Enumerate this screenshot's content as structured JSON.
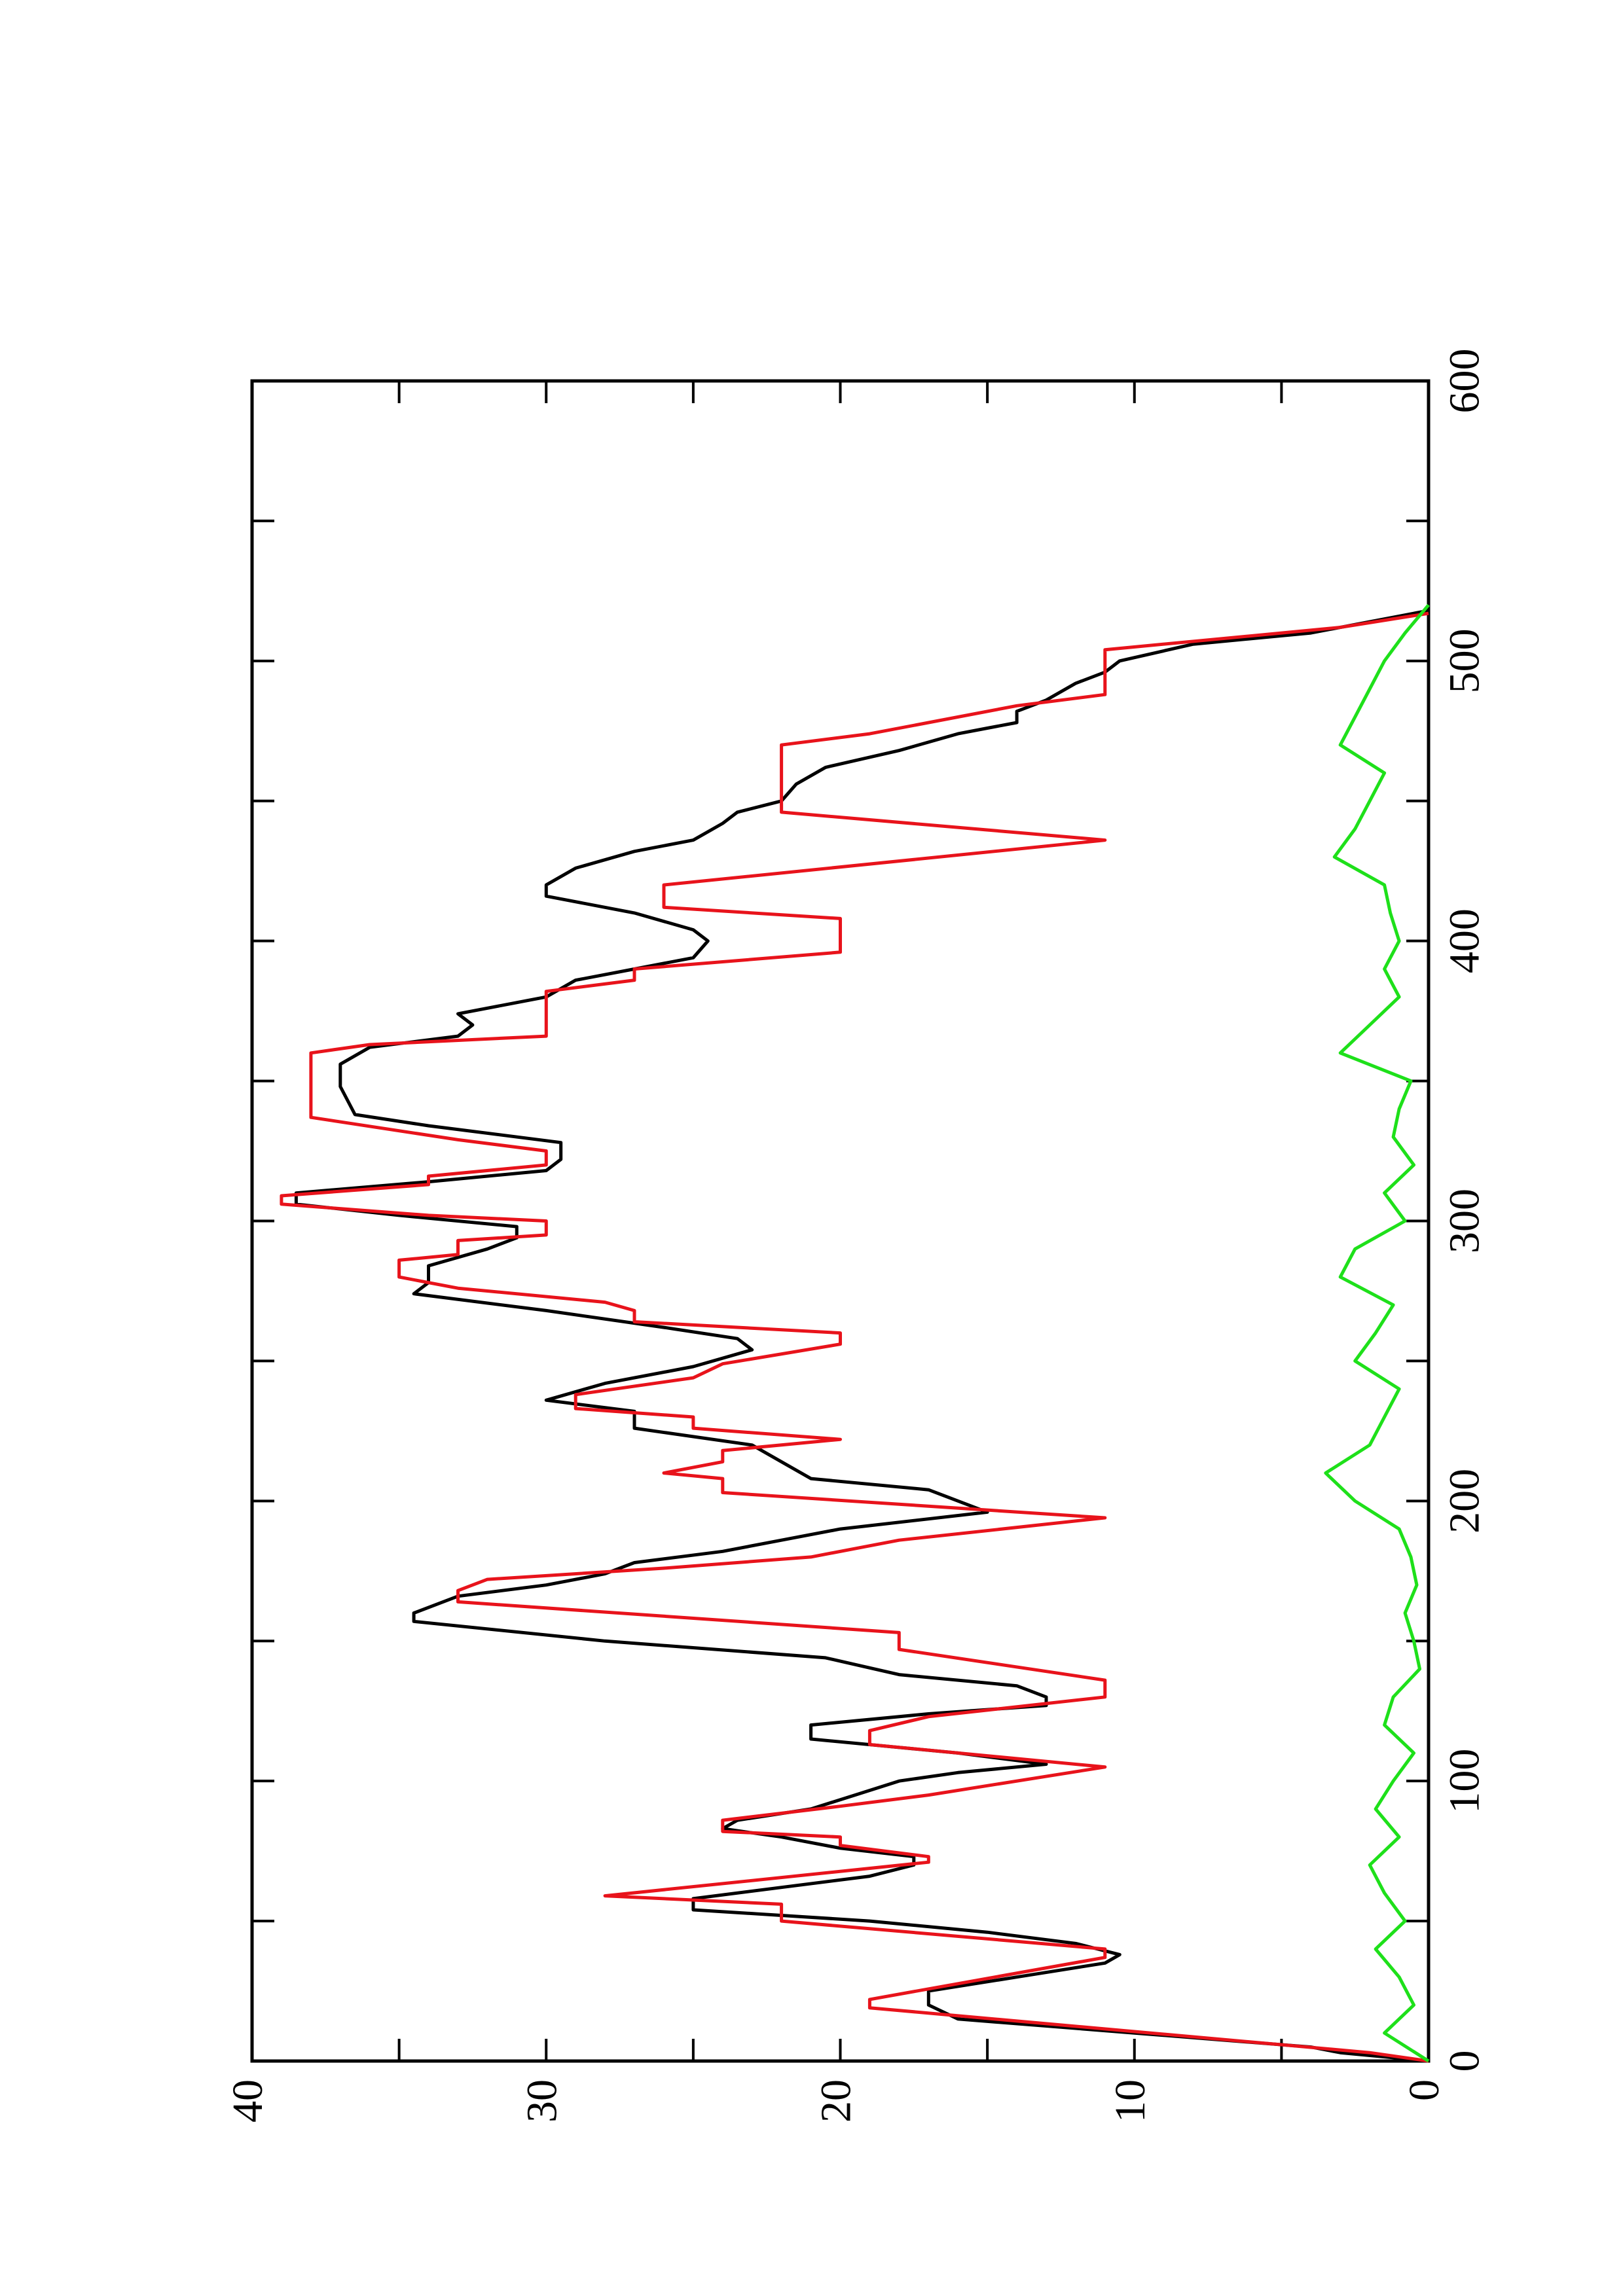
{
  "chart_data": {
    "type": "line",
    "rotated": true,
    "xlim": [
      0,
      600
    ],
    "xticks": [
      0,
      100,
      200,
      300,
      400,
      500,
      600
    ],
    "xminorticks": [
      50,
      150,
      250,
      350,
      450,
      550
    ],
    "ylim": [
      0,
      40
    ],
    "yticks": [
      0,
      10,
      20,
      30,
      40
    ],
    "yminorticks": [
      5,
      15,
      25,
      35
    ],
    "series": [
      {
        "color": "#000000",
        "x": [
          0,
          3,
          5,
          10,
          15,
          20,
          25,
          30,
          35,
          38,
          42,
          46,
          50,
          52,
          54,
          58,
          62,
          66,
          70,
          73,
          76,
          80,
          83,
          86,
          90,
          95,
          100,
          103,
          106,
          110,
          115,
          120,
          124,
          127,
          130,
          134,
          138,
          144,
          150,
          157,
          160,
          166,
          170,
          174,
          178,
          182,
          186,
          190,
          196,
          200,
          204,
          208,
          214,
          220,
          226,
          232,
          236,
          242,
          248,
          254,
          258,
          262,
          268,
          274,
          278,
          284,
          290,
          294,
          298,
          302,
          306,
          310,
          314,
          318,
          322,
          328,
          334,
          338,
          348,
          356,
          362,
          366,
          370,
          374,
          380,
          386,
          390,
          394,
          400,
          404,
          410,
          416,
          420,
          426,
          432,
          436,
          442,
          446,
          450,
          456,
          462,
          468,
          474,
          476,
          478,
          482,
          486,
          492,
          496,
          500,
          506,
          510,
          514,
          518
        ],
        "values": [
          0,
          3,
          4,
          10,
          16,
          17,
          17,
          14,
          11,
          10.5,
          12,
          15,
          19,
          22,
          25,
          25,
          22,
          19,
          17.5,
          17.5,
          20,
          22,
          24,
          23.5,
          21,
          19.5,
          18,
          16,
          13,
          16,
          21,
          21,
          17,
          13,
          13,
          14,
          18,
          20.5,
          28,
          34.5,
          34.5,
          33,
          30,
          28,
          27,
          24,
          22,
          20,
          15,
          16,
          17,
          21,
          22,
          23,
          27,
          27,
          30,
          28,
          25,
          23,
          23.5,
          26,
          30,
          34.5,
          34,
          34,
          32,
          31,
          31,
          35,
          38.5,
          38.5,
          34,
          30,
          29.5,
          29.5,
          34,
          36.5,
          37,
          37,
          36,
          33,
          32.5,
          33,
          30,
          29,
          27,
          25,
          24.5,
          25,
          27,
          30,
          30,
          29,
          27,
          25,
          24,
          23.5,
          22,
          21.5,
          20.5,
          18,
          16,
          15,
          14,
          14,
          13,
          12,
          11,
          10.5,
          8,
          4,
          2,
          0
        ]
      },
      {
        "color": "#e8131b",
        "x": [
          0,
          3,
          19,
          22,
          37,
          40,
          50,
          56,
          59,
          71,
          73,
          77,
          80,
          82,
          86,
          91,
          95,
          105,
          113,
          118,
          123,
          130,
          136,
          147,
          153,
          164,
          168,
          172,
          176,
          180,
          186,
          194,
          203,
          208,
          210,
          214,
          218,
          222,
          226,
          230,
          233,
          238,
          244,
          249,
          256,
          260,
          264,
          268,
          271,
          276,
          280,
          286,
          288,
          293,
          295,
          300,
          302,
          306,
          309,
          313,
          316,
          320,
          325,
          329,
          337,
          351,
          360,
          363,
          366,
          382,
          386,
          390,
          396,
          408,
          412,
          420,
          436,
          446,
          450,
          470,
          474,
          478,
          484,
          488,
          500,
          504,
          510,
          512,
          517
        ],
        "values": [
          0,
          2,
          19,
          19,
          11,
          11,
          22,
          22,
          28,
          17,
          17,
          20,
          20,
          24,
          24,
          20,
          17,
          11,
          19,
          19,
          17,
          11,
          11,
          18,
          18,
          33,
          33,
          32,
          26,
          21,
          18,
          11,
          24,
          24,
          26,
          24,
          24,
          20,
          25,
          25,
          29,
          29,
          25,
          24,
          20,
          20,
          27,
          27,
          28,
          33,
          35,
          35,
          33,
          33,
          30,
          30,
          34,
          39,
          39,
          34,
          34,
          30,
          30,
          33,
          38,
          38,
          38,
          36,
          30,
          30,
          27,
          27,
          20,
          20,
          26,
          26,
          11,
          22,
          22,
          22,
          19,
          17,
          14,
          11,
          11,
          11,
          5,
          3,
          0
        ]
      },
      {
        "color": "#1ee01a",
        "x": [
          0,
          10,
          20,
          30,
          40,
          50,
          60,
          70,
          80,
          90,
          100,
          110,
          120,
          130,
          140,
          150,
          160,
          170,
          180,
          190,
          200,
          210,
          220,
          230,
          240,
          250,
          260,
          270,
          280,
          290,
          300,
          310,
          320,
          330,
          340,
          350,
          360,
          370,
          380,
          390,
          400,
          410,
          420,
          430,
          440,
          450,
          460,
          470,
          480,
          490,
          500,
          510,
          520
        ],
        "values": [
          0,
          1.5,
          0.5,
          1,
          1.8,
          0.8,
          1.5,
          2,
          1,
          1.8,
          1.2,
          0.5,
          1.5,
          1.2,
          0.3,
          0.5,
          0.8,
          0.4,
          0.6,
          1,
          2.5,
          3.5,
          2,
          1.5,
          1,
          2.5,
          1.8,
          1.2,
          3,
          2.5,
          0.8,
          1.5,
          0.5,
          1.2,
          1,
          0.6,
          3,
          2,
          1,
          1.5,
          1,
          1.3,
          1.5,
          3.2,
          2.5,
          2,
          1.5,
          3,
          2.5,
          2,
          1.5,
          0.8,
          0
        ]
      }
    ]
  }
}
